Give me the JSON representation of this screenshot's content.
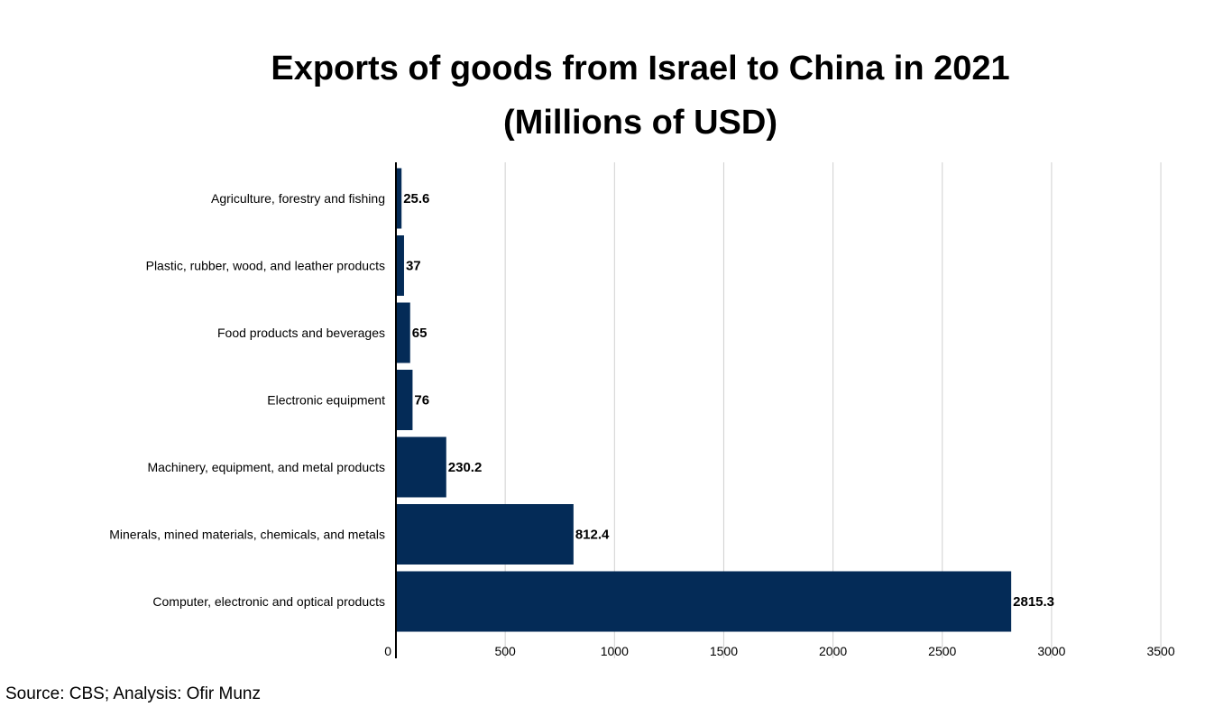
{
  "chart_data": {
    "type": "bar",
    "orientation": "horizontal",
    "title_line1": "Exports of goods from Israel to China in 2021",
    "title_line2": "(Millions of USD)",
    "categories": [
      "Agriculture, forestry and fishing",
      "Plastic, rubber, wood, and leather products",
      "Food products and beverages",
      "Electronic equipment",
      "Machinery, equipment, and metal products",
      "Minerals, mined materials, chemicals, and metals",
      "Computer, electronic and optical products"
    ],
    "values": [
      25.6,
      37,
      65,
      76,
      230.2,
      812.4,
      2815.3
    ],
    "value_labels": [
      "25.6",
      "37",
      "65",
      "76",
      "230.2",
      "812.4",
      "2815.3"
    ],
    "xlim": [
      0,
      3500
    ],
    "xticks": [
      0,
      500,
      1000,
      1500,
      2000,
      2500,
      3000,
      3500
    ],
    "grid": "vertical",
    "bar_color": "#042b57",
    "grid_color": "#d0d0d0"
  },
  "footer": {
    "source": "Source: CBS; Analysis: Ofir Munz"
  }
}
